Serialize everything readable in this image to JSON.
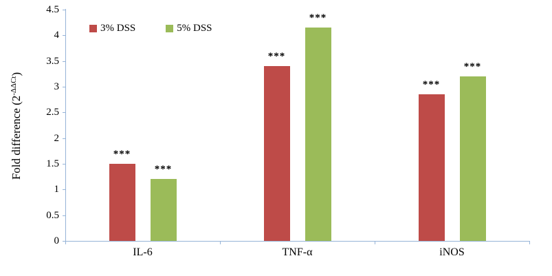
{
  "chart_data": {
    "type": "bar",
    "title": "",
    "ylabel_main": "Fold difference (2",
    "ylabel_sup": "-ΔΔCt",
    "ylabel_close": ")",
    "xlabel": "",
    "ylim": [
      0,
      4.5
    ],
    "ytick_interval": 0.5,
    "yticks": [
      "0",
      "0.5",
      "1",
      "1.5",
      "2",
      "2.5",
      "3",
      "3.5",
      "4",
      "4.5"
    ],
    "categories": [
      "IL-6",
      "TNF-α",
      "iNOS"
    ],
    "series": [
      {
        "name": "3% DSS",
        "color": "#BE4B48",
        "values": [
          1.5,
          3.4,
          2.85
        ],
        "annotations": [
          "***",
          "***",
          "***"
        ]
      },
      {
        "name": "5% DSS",
        "color": "#9BBB59",
        "values": [
          1.2,
          4.15,
          3.2
        ],
        "annotations": [
          "***",
          "***",
          "***"
        ]
      }
    ],
    "legend_position": "top-left-inside",
    "grid": false,
    "axis_color": "#95B3D7",
    "text_color": "#000000"
  }
}
